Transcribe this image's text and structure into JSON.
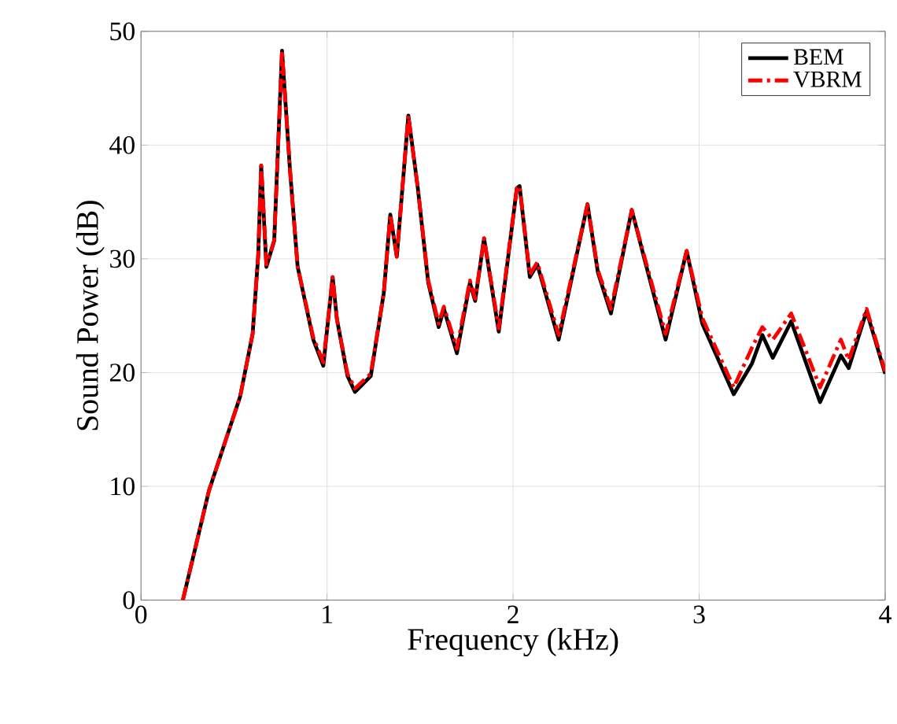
{
  "chart_data": {
    "type": "line",
    "xlabel": "Frequency (kHz)",
    "ylabel": "Sound Power (dB)",
    "xlim": [
      0,
      4
    ],
    "ylim": [
      0,
      50
    ],
    "xticks": [
      0,
      1,
      2,
      3,
      4
    ],
    "yticks": [
      0,
      10,
      20,
      30,
      40,
      50
    ],
    "grid": true,
    "legend": "top right",
    "x": [
      0.225,
      0.365,
      0.533,
      0.6,
      0.63,
      0.646,
      0.674,
      0.716,
      0.758,
      0.8,
      0.842,
      0.926,
      0.98,
      1.03,
      1.053,
      1.11,
      1.15,
      1.235,
      1.305,
      1.34,
      1.375,
      1.437,
      1.488,
      1.544,
      1.6,
      1.628,
      1.698,
      1.768,
      1.796,
      1.844,
      1.923,
      2.02,
      2.035,
      2.09,
      2.13,
      2.245,
      2.4,
      2.456,
      2.526,
      2.638,
      2.709,
      2.82,
      2.933,
      3.017,
      3.186,
      3.284,
      3.34,
      3.396,
      3.495,
      3.65,
      3.762,
      3.804,
      3.9,
      4.0
    ],
    "series": [
      {
        "name": "BEM",
        "color": "#000000",
        "line_style": "solid",
        "values": [
          0,
          9.6,
          17.9,
          23.4,
          30.3,
          38.2,
          29.3,
          31.6,
          48.3,
          38,
          29.3,
          22.9,
          20.6,
          28.4,
          24.7,
          19.7,
          18.3,
          19.7,
          27,
          33.9,
          30.2,
          42.6,
          36.2,
          27.9,
          24,
          25.6,
          21.7,
          27.9,
          26.3,
          31.8,
          23.6,
          36.2,
          36.4,
          28.4,
          29.5,
          22.9,
          34.8,
          28.8,
          25.2,
          34.3,
          29.8,
          22.9,
          30.7,
          24.3,
          18.1,
          20.8,
          23.3,
          21.3,
          24.5,
          17.4,
          21.5,
          20.4,
          25.4,
          19.9
        ]
      },
      {
        "name": "VBRM",
        "color": "#ff0000",
        "line_style": "dashdot",
        "values": [
          0,
          9.6,
          17.9,
          23.4,
          30.3,
          38.2,
          29.5,
          31.6,
          48.3,
          38,
          29.3,
          23.1,
          20.9,
          28.4,
          24.7,
          19.9,
          18.6,
          19.9,
          27,
          33.9,
          30.2,
          42.6,
          36.2,
          28.1,
          24.3,
          25.8,
          22.1,
          28.1,
          26.5,
          31.8,
          23.9,
          36.2,
          36.4,
          28.6,
          29.7,
          23.3,
          34.8,
          29,
          25.6,
          34.3,
          30,
          23.4,
          30.7,
          24.8,
          18.7,
          22.2,
          24,
          22.9,
          25.2,
          18.7,
          22.9,
          21.1,
          25.6,
          20.1
        ]
      }
    ]
  }
}
